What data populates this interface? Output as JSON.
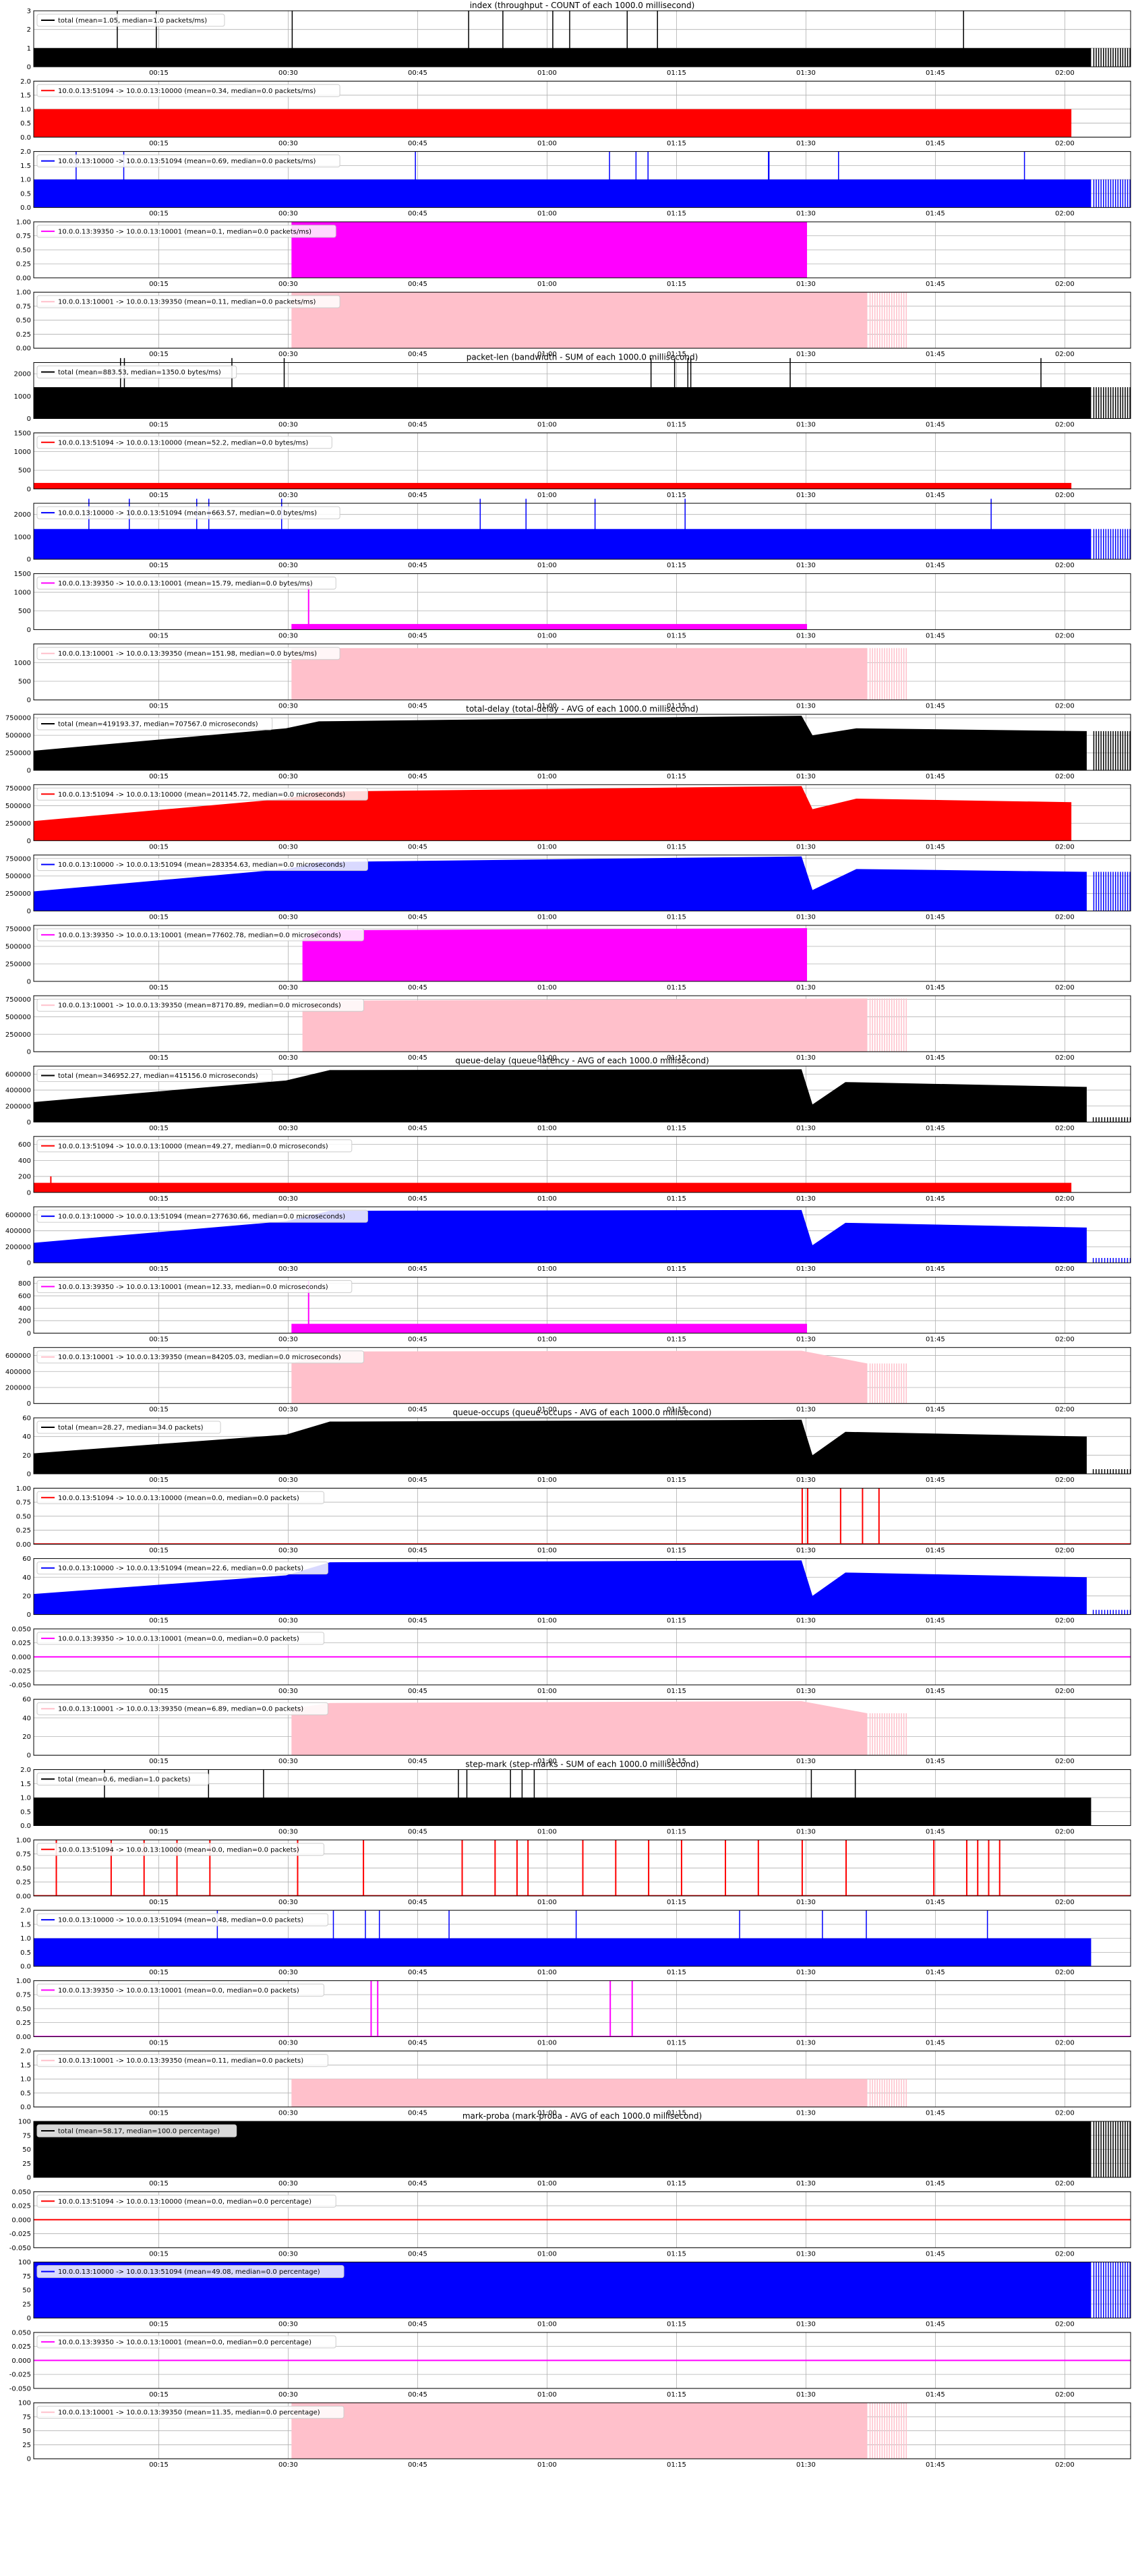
{
  "colors": {
    "total": "#000000",
    "s1": "#ff0000",
    "s2": "#0000ff",
    "s3": "#ff00ff",
    "s4": "#ffc0cb"
  },
  "x_ticks": [
    "00:15",
    "00:30",
    "00:45",
    "01:00",
    "01:15",
    "01:30",
    "01:45",
    "02:00"
  ],
  "chart_data": [
    {
      "type": "area",
      "group_title": "index (throughput - COUNT of each 1000.0 millisecond)",
      "series_key": "total",
      "legend": "total (mean=1.05, median=1.0 packets/ms)",
      "ylim": [
        0,
        3
      ],
      "yticks": [
        "0",
        "1",
        "2",
        "3"
      ],
      "shape": "flat",
      "level": 1,
      "spike_level": 3,
      "end": 0.964,
      "ragged": true,
      "spiky": true
    },
    {
      "type": "area",
      "series_key": "s1",
      "legend": "10.0.0.13:51094 -> 10.0.0.13:10000 (mean=0.34, median=0.0 packets/ms)",
      "ylim": [
        0,
        2
      ],
      "yticks": [
        "0.0",
        "0.5",
        "1.0",
        "1.5",
        "2.0"
      ],
      "shape": "flat",
      "level": 1,
      "end": 0.946
    },
    {
      "type": "area",
      "series_key": "s2",
      "legend": "10.0.0.13:10000 -> 10.0.0.13:51094 (mean=0.69, median=0.0 packets/ms)",
      "ylim": [
        0,
        2
      ],
      "yticks": [
        "0.0",
        "0.5",
        "1.0",
        "1.5",
        "2.0"
      ],
      "shape": "flat",
      "level": 1,
      "spike_level": 2,
      "end": 0.964,
      "ragged": true,
      "spiky": true
    },
    {
      "type": "area",
      "series_key": "s3",
      "legend": "10.0.0.13:39350 -> 10.0.0.13:10001 (mean=0.1, median=0.0 packets/ms)",
      "ylim": [
        0,
        1
      ],
      "yticks": [
        "0.00",
        "0.25",
        "0.50",
        "0.75",
        "1.00"
      ],
      "shape": "flat",
      "level": 1,
      "start": 0.235,
      "end": 0.705
    },
    {
      "type": "area",
      "series_key": "s4",
      "legend": "10.0.0.13:10001 -> 10.0.0.13:39350 (mean=0.11, median=0.0 packets/ms)",
      "ylim": [
        0,
        1
      ],
      "yticks": [
        "0.00",
        "0.25",
        "0.50",
        "0.75",
        "1.00"
      ],
      "shape": "flat",
      "level": 1,
      "start": 0.235,
      "end": 0.76,
      "ragged": true
    },
    {
      "type": "area",
      "group_title": "packet-len (bandwidth - SUM of each 1000.0 millisecond)",
      "series_key": "total",
      "legend": "total (mean=883.53, median=1350.0 bytes/ms)",
      "ylim": [
        0,
        2500
      ],
      "yticks": [
        "0",
        "1000",
        "2000"
      ],
      "shape": "flat",
      "level": 1400,
      "spike_level": 2700,
      "end": 0.964,
      "ragged": true,
      "spiky": true
    },
    {
      "type": "area",
      "series_key": "s1",
      "legend": "10.0.0.13:51094 -> 10.0.0.13:10000 (mean=52.2, median=0.0 bytes/ms)",
      "ylim": [
        0,
        1500
      ],
      "yticks": [
        "0",
        "500",
        "1000",
        "1500"
      ],
      "shape": "flat",
      "level": 160,
      "end": 0.946
    },
    {
      "type": "area",
      "series_key": "s2",
      "legend": "10.0.0.13:10000 -> 10.0.0.13:51094 (mean=663.57, median=0.0 bytes/ms)",
      "ylim": [
        0,
        2500
      ],
      "yticks": [
        "0",
        "1000",
        "2000"
      ],
      "shape": "flat",
      "level": 1350,
      "spike_level": 2700,
      "end": 0.964,
      "ragged": true,
      "spiky": true
    },
    {
      "type": "area",
      "series_key": "s3",
      "legend": "10.0.0.13:39350 -> 10.0.0.13:10001 (mean=15.79, median=0.0 bytes/ms)",
      "ylim": [
        0,
        1500
      ],
      "yticks": [
        "0",
        "500",
        "1000",
        "1500"
      ],
      "shape": "flat",
      "level": 150,
      "start": 0.235,
      "end": 0.705,
      "spike_level": 1200
    },
    {
      "type": "area",
      "series_key": "s4",
      "legend": "10.0.0.13:10001 -> 10.0.0.13:39350 (mean=151.98, median=0.0 bytes/ms)",
      "ylim": [
        0,
        1500
      ],
      "yticks": [
        "0",
        "500",
        "1000"
      ],
      "shape": "flat",
      "level": 1390,
      "start": 0.235,
      "end": 0.76,
      "ragged": true
    },
    {
      "type": "area",
      "group_title": "total-delay (total-delay - AVG of each 1000.0 millisecond)",
      "series_key": "total",
      "legend": "total (mean=419193.37, median=707567.0 microseconds)",
      "ylim": [
        0,
        800000
      ],
      "yticks": [
        "0",
        "250000",
        "500000",
        "750000"
      ],
      "shape": "ramp",
      "ramp": [
        [
          0,
          280000
        ],
        [
          0.23,
          600000
        ],
        [
          0.26,
          700000
        ],
        [
          0.7,
          780000
        ],
        [
          0.71,
          500000
        ],
        [
          0.75,
          600000
        ],
        [
          0.96,
          560000
        ]
      ],
      "end": 0.964,
      "ragged": true
    },
    {
      "type": "area",
      "series_key": "s1",
      "legend": "10.0.0.13:51094 -> 10.0.0.13:10000 (mean=201145.72, median=0.0 microseconds)",
      "ylim": [
        0,
        800000
      ],
      "yticks": [
        "0",
        "250000",
        "500000",
        "750000"
      ],
      "shape": "ramp",
      "ramp": [
        [
          0,
          280000
        ],
        [
          0.23,
          600000
        ],
        [
          0.26,
          700000
        ],
        [
          0.7,
          780000
        ],
        [
          0.71,
          450000
        ],
        [
          0.75,
          600000
        ],
        [
          0.946,
          550000
        ]
      ],
      "end": 0.946
    },
    {
      "type": "area",
      "series_key": "s2",
      "legend": "10.0.0.13:10000 -> 10.0.0.13:51094 (mean=283354.63, median=0.0 microseconds)",
      "ylim": [
        0,
        800000
      ],
      "yticks": [
        "0",
        "250000",
        "500000",
        "750000"
      ],
      "shape": "ramp",
      "ramp": [
        [
          0,
          280000
        ],
        [
          0.23,
          600000
        ],
        [
          0.26,
          700000
        ],
        [
          0.7,
          780000
        ],
        [
          0.71,
          300000
        ],
        [
          0.75,
          600000
        ],
        [
          0.96,
          560000
        ]
      ],
      "end": 0.964,
      "ragged": true
    },
    {
      "type": "area",
      "series_key": "s3",
      "legend": "10.0.0.13:39350 -> 10.0.0.13:10001 (mean=77602.78, median=0.0 microseconds)",
      "ylim": [
        0,
        800000
      ],
      "yticks": [
        "0",
        "250000",
        "500000",
        "750000"
      ],
      "shape": "ramp",
      "ramp": [
        [
          0.245,
          600000
        ],
        [
          0.26,
          730000
        ],
        [
          0.705,
          760000
        ]
      ],
      "start": 0.245,
      "end": 0.705
    },
    {
      "type": "area",
      "series_key": "s4",
      "legend": "10.0.0.13:10001 -> 10.0.0.13:39350 (mean=87170.89, median=0.0 microseconds)",
      "ylim": [
        0,
        800000
      ],
      "yticks": [
        "0",
        "250000",
        "500000",
        "750000"
      ],
      "shape": "ramp",
      "ramp": [
        [
          0.245,
          600000
        ],
        [
          0.26,
          730000
        ],
        [
          0.76,
          760000
        ]
      ],
      "start": 0.245,
      "end": 0.76,
      "ragged": true
    },
    {
      "type": "area",
      "group_title": "queue-delay (queue-latency - AVG of each 1000.0 millisecond)",
      "series_key": "total",
      "legend": "total (mean=346952.27, median=415156.0 microseconds)",
      "ylim": [
        0,
        700000
      ],
      "yticks": [
        "0",
        "200000",
        "400000",
        "600000"
      ],
      "shape": "ramp",
      "ramp": [
        [
          0,
          250000
        ],
        [
          0.23,
          520000
        ],
        [
          0.27,
          650000
        ],
        [
          0.7,
          660000
        ],
        [
          0.71,
          220000
        ],
        [
          0.74,
          500000
        ],
        [
          0.96,
          440000
        ]
      ],
      "end": 0.964,
      "tail_level": 60000
    },
    {
      "type": "area",
      "series_key": "s1",
      "legend": "10.0.0.13:51094 -> 10.0.0.13:10000 (mean=49.27, median=0.0 microseconds)",
      "ylim": [
        0,
        700
      ],
      "yticks": [
        "0",
        "200",
        "400",
        "600"
      ],
      "shape": "flat",
      "level": 120,
      "end": 0.946,
      "spike_level": 200
    },
    {
      "type": "area",
      "series_key": "s2",
      "legend": "10.0.0.13:10000 -> 10.0.0.13:51094 (mean=277630.66, median=0.0 microseconds)",
      "ylim": [
        0,
        700000
      ],
      "yticks": [
        "0",
        "200000",
        "400000",
        "600000"
      ],
      "shape": "ramp",
      "ramp": [
        [
          0,
          250000
        ],
        [
          0.23,
          520000
        ],
        [
          0.27,
          650000
        ],
        [
          0.7,
          660000
        ],
        [
          0.71,
          220000
        ],
        [
          0.74,
          500000
        ],
        [
          0.96,
          440000
        ]
      ],
      "end": 0.964,
      "tail_level": 60000
    },
    {
      "type": "area",
      "series_key": "s3",
      "legend": "10.0.0.13:39350 -> 10.0.0.13:10001 (mean=12.33, median=0.0 microseconds)",
      "ylim": [
        0,
        900
      ],
      "yticks": [
        "0",
        "200",
        "400",
        "600",
        "800"
      ],
      "shape": "flat",
      "level": 150,
      "start": 0.235,
      "end": 0.705,
      "spike_level": 850
    },
    {
      "type": "area",
      "series_key": "s4",
      "legend": "10.0.0.13:10001 -> 10.0.0.13:39350 (mean=84205.03, median=0.0 microseconds)",
      "ylim": [
        0,
        700000
      ],
      "yticks": [
        "0",
        "200000",
        "400000",
        "600000"
      ],
      "shape": "ramp",
      "ramp": [
        [
          0.235,
          500000
        ],
        [
          0.27,
          650000
        ],
        [
          0.7,
          660000
        ],
        [
          0.76,
          500000
        ]
      ],
      "start": 0.235,
      "end": 0.76,
      "ragged": true
    },
    {
      "type": "area",
      "group_title": "queue-occups (queue-occups - AVG of each 1000.0 millisecond)",
      "series_key": "total",
      "legend": "total (mean=28.27, median=34.0 packets)",
      "ylim": [
        0,
        60
      ],
      "yticks": [
        "0",
        "20",
        "40",
        "60"
      ],
      "shape": "ramp",
      "ramp": [
        [
          0,
          22
        ],
        [
          0.23,
          42
        ],
        [
          0.27,
          56
        ],
        [
          0.7,
          58
        ],
        [
          0.71,
          20
        ],
        [
          0.74,
          45
        ],
        [
          0.96,
          40
        ]
      ],
      "end": 0.964,
      "tail_level": 5
    },
    {
      "type": "area",
      "series_key": "s1",
      "legend": "10.0.0.13:51094 -> 10.0.0.13:10000 (mean=0.0, median=0.0 packets)",
      "ylim": [
        0,
        1
      ],
      "yticks": [
        "0.00",
        "0.25",
        "0.50",
        "0.75",
        "1.00"
      ],
      "shape": "impulses",
      "impulses": [
        0.7,
        0.705,
        0.735,
        0.755,
        0.77
      ],
      "level": 1
    },
    {
      "type": "area",
      "series_key": "s2",
      "legend": "10.0.0.13:10000 -> 10.0.0.13:51094 (mean=22.6, median=0.0 packets)",
      "ylim": [
        0,
        60
      ],
      "yticks": [
        "0",
        "20",
        "40",
        "60"
      ],
      "shape": "ramp",
      "ramp": [
        [
          0,
          22
        ],
        [
          0.23,
          42
        ],
        [
          0.27,
          56
        ],
        [
          0.7,
          58
        ],
        [
          0.71,
          20
        ],
        [
          0.74,
          45
        ],
        [
          0.96,
          40
        ]
      ],
      "end": 0.964,
      "tail_level": 5
    },
    {
      "type": "area",
      "series_key": "s3",
      "legend": "10.0.0.13:39350 -> 10.0.0.13:10001 (mean=0.0, median=0.0 packets)",
      "ylim": [
        -0.05,
        0.05
      ],
      "yticks": [
        "-0.050",
        "-0.025",
        "0.000",
        "0.025",
        "0.050"
      ],
      "shape": "zero"
    },
    {
      "type": "area",
      "series_key": "s4",
      "legend": "10.0.0.13:10001 -> 10.0.0.13:39350 (mean=6.89, median=0.0 packets)",
      "ylim": [
        0,
        60
      ],
      "yticks": [
        "0",
        "20",
        "40",
        "60"
      ],
      "shape": "ramp",
      "ramp": [
        [
          0.235,
          50
        ],
        [
          0.27,
          56
        ],
        [
          0.7,
          58
        ],
        [
          0.76,
          45
        ]
      ],
      "start": 0.235,
      "end": 0.76,
      "ragged": true
    },
    {
      "type": "area",
      "group_title": "step-mark (step-marks - SUM of each 1000.0 millisecond)",
      "series_key": "total",
      "legend": "total (mean=0.6, median=1.0 packets)",
      "ylim": [
        0,
        2
      ],
      "yticks": [
        "0.0",
        "0.5",
        "1.0",
        "1.5",
        "2.0"
      ],
      "shape": "flat",
      "level": 1,
      "spike_level": 2,
      "end": 0.964,
      "spiky": true
    },
    {
      "type": "area",
      "series_key": "s1",
      "legend": "10.0.0.13:51094 -> 10.0.0.13:10000 (mean=0.0, median=0.0 packets)",
      "ylim": [
        0,
        1
      ],
      "yticks": [
        "0.00",
        "0.25",
        "0.50",
        "0.75",
        "1.00"
      ],
      "shape": "impulses",
      "impulses": [
        0.02,
        0.07,
        0.1,
        0.13,
        0.16,
        0.24,
        0.3,
        0.39,
        0.42,
        0.44,
        0.45,
        0.5,
        0.53,
        0.56,
        0.59,
        0.63,
        0.66,
        0.7,
        0.74,
        0.82,
        0.85,
        0.86,
        0.87,
        0.88
      ],
      "level": 1
    },
    {
      "type": "area",
      "series_key": "s2",
      "legend": "10.0.0.13:10000 -> 10.0.0.13:51094 (mean=0.48, median=0.0 packets)",
      "ylim": [
        0,
        2
      ],
      "yticks": [
        "0.0",
        "0.5",
        "1.0",
        "1.5",
        "2.0"
      ],
      "shape": "flat",
      "level": 1,
      "spike_level": 2,
      "end": 0.964,
      "spiky": true
    },
    {
      "type": "area",
      "series_key": "s3",
      "legend": "10.0.0.13:39350 -> 10.0.0.13:10001 (mean=0.0, median=0.0 packets)",
      "ylim": [
        0,
        1
      ],
      "yticks": [
        "0.00",
        "0.25",
        "0.50",
        "0.75",
        "1.00"
      ],
      "shape": "impulses",
      "impulses": [
        0.307,
        0.313,
        0.525,
        0.545
      ],
      "level": 1
    },
    {
      "type": "area",
      "series_key": "s4",
      "legend": "10.0.0.13:10001 -> 10.0.0.13:39350 (mean=0.11, median=0.0 packets)",
      "ylim": [
        0,
        2
      ],
      "yticks": [
        "0.0",
        "0.5",
        "1.0",
        "1.5",
        "2.0"
      ],
      "shape": "flat",
      "level": 1,
      "start": 0.235,
      "end": 0.76,
      "ragged": true
    },
    {
      "type": "area",
      "group_title": "mark-proba (mark-proba - AVG of each 1000.0 millisecond)",
      "series_key": "total",
      "legend": "total (mean=58.17, median=100.0 percentage)",
      "ylim": [
        0,
        100
      ],
      "yticks": [
        "0",
        "25",
        "50",
        "75",
        "100"
      ],
      "shape": "flat",
      "level": 100,
      "end": 0.964,
      "ragged": true
    },
    {
      "type": "area",
      "series_key": "s1",
      "legend": "10.0.0.13:51094 -> 10.0.0.13:10000 (mean=0.0, median=0.0 percentage)",
      "ylim": [
        -0.05,
        0.05
      ],
      "yticks": [
        "-0.050",
        "-0.025",
        "0.000",
        "0.025",
        "0.050"
      ],
      "shape": "zero"
    },
    {
      "type": "area",
      "series_key": "s2",
      "legend": "10.0.0.13:10000 -> 10.0.0.13:51094 (mean=49.08, median=0.0 percentage)",
      "ylim": [
        0,
        100
      ],
      "yticks": [
        "0",
        "25",
        "50",
        "75",
        "100"
      ],
      "shape": "flat",
      "level": 100,
      "end": 0.964,
      "ragged": true
    },
    {
      "type": "area",
      "series_key": "s3",
      "legend": "10.0.0.13:39350 -> 10.0.0.13:10001 (mean=0.0, median=0.0 percentage)",
      "ylim": [
        -0.05,
        0.05
      ],
      "yticks": [
        "-0.050",
        "-0.025",
        "0.000",
        "0.025",
        "0.050"
      ],
      "shape": "zero"
    },
    {
      "type": "area",
      "series_key": "s4",
      "legend": "10.0.0.13:10001 -> 10.0.0.13:39350 (mean=11.35, median=0.0 percentage)",
      "ylim": [
        0,
        100
      ],
      "yticks": [
        "0",
        "25",
        "50",
        "75",
        "100"
      ],
      "shape": "flat",
      "level": 100,
      "start": 0.235,
      "end": 0.76,
      "ragged": true
    }
  ]
}
